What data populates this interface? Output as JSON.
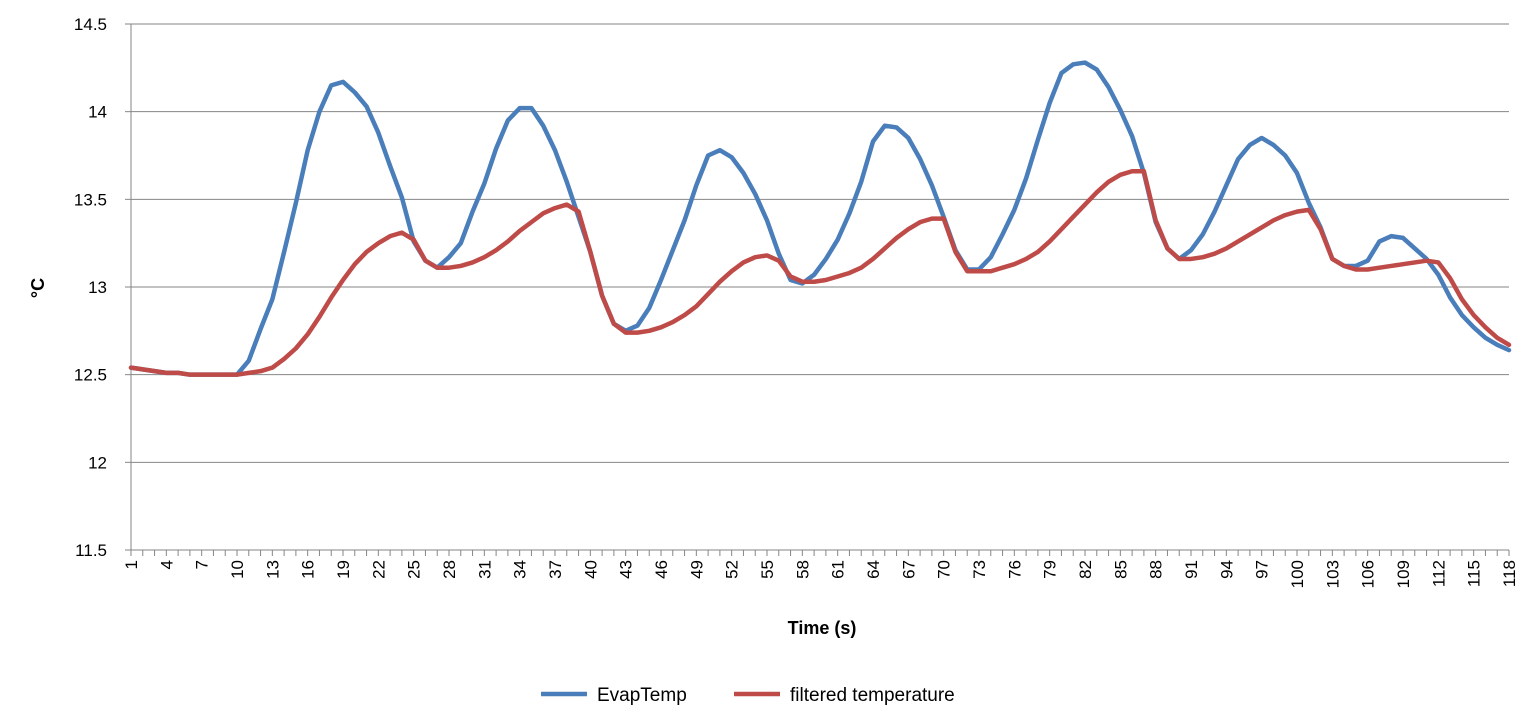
{
  "chart_data": {
    "type": "line",
    "title": "",
    "xlabel": "Time (s)",
    "ylabel": "°C",
    "ylim": [
      11.5,
      14.5
    ],
    "y_ticks": [
      "11.5",
      "12",
      "12.5",
      "13",
      "13.5",
      "14",
      "14.5"
    ],
    "x_range": [
      1,
      118
    ],
    "x_tick_labels": [
      "1",
      "4",
      "7",
      "10",
      "13",
      "16",
      "19",
      "22",
      "25",
      "28",
      "31",
      "34",
      "37",
      "40",
      "43",
      "46",
      "49",
      "52",
      "55",
      "58",
      "61",
      "64",
      "67",
      "70",
      "73",
      "76",
      "79",
      "82",
      "85",
      "88",
      "91",
      "94",
      "97",
      "100",
      "103",
      "106",
      "109",
      "112",
      "115",
      "118"
    ],
    "grid": "horizontal",
    "legend_position": "bottom",
    "series": [
      {
        "name": "EvapTemp",
        "color": "#4A7EBB",
        "values": [
          12.54,
          12.53,
          12.52,
          12.51,
          12.51,
          12.5,
          12.5,
          12.5,
          12.5,
          12.5,
          12.58,
          12.76,
          12.93,
          13.2,
          13.48,
          13.78,
          14.0,
          14.15,
          14.17,
          14.11,
          14.03,
          13.88,
          13.69,
          13.51,
          13.26,
          13.15,
          13.11,
          13.17,
          13.25,
          13.43,
          13.59,
          13.79,
          13.95,
          14.02,
          14.02,
          13.92,
          13.78,
          13.6,
          13.4,
          13.2,
          12.95,
          12.79,
          12.75,
          12.78,
          12.88,
          13.04,
          13.21,
          13.38,
          13.58,
          13.75,
          13.78,
          13.74,
          13.65,
          13.53,
          13.38,
          13.19,
          13.04,
          13.02,
          13.07,
          13.16,
          13.27,
          13.42,
          13.6,
          13.83,
          13.92,
          13.91,
          13.85,
          13.73,
          13.58,
          13.4,
          13.21,
          13.1,
          13.1,
          13.17,
          13.3,
          13.44,
          13.62,
          13.84,
          14.05,
          14.22,
          14.27,
          14.28,
          14.24,
          14.14,
          14.01,
          13.86,
          13.65,
          13.37,
          13.22,
          13.16,
          13.21,
          13.3,
          13.43,
          13.58,
          13.73,
          13.81,
          13.85,
          13.81,
          13.75,
          13.65,
          13.48,
          13.34,
          13.16,
          13.12,
          13.12,
          13.15,
          13.26,
          13.29,
          13.28,
          13.22,
          13.16,
          13.07,
          12.94,
          12.84,
          12.77,
          12.71,
          12.67,
          12.64
        ]
      },
      {
        "name": "filtered temperature",
        "color": "#BE4B48",
        "values": [
          12.54,
          12.53,
          12.52,
          12.51,
          12.51,
          12.5,
          12.5,
          12.5,
          12.5,
          12.5,
          12.51,
          12.52,
          12.54,
          12.59,
          12.65,
          12.73,
          12.83,
          12.94,
          13.04,
          13.13,
          13.2,
          13.25,
          13.29,
          13.31,
          13.27,
          13.15,
          13.11,
          13.11,
          13.12,
          13.14,
          13.17,
          13.21,
          13.26,
          13.32,
          13.37,
          13.42,
          13.45,
          13.47,
          13.43,
          13.2,
          12.95,
          12.79,
          12.74,
          12.74,
          12.75,
          12.77,
          12.8,
          12.84,
          12.89,
          12.96,
          13.03,
          13.09,
          13.14,
          13.17,
          13.18,
          13.15,
          13.06,
          13.03,
          13.03,
          13.04,
          13.06,
          13.08,
          13.11,
          13.16,
          13.22,
          13.28,
          13.33,
          13.37,
          13.39,
          13.39,
          13.2,
          13.09,
          13.09,
          13.09,
          13.11,
          13.13,
          13.16,
          13.2,
          13.26,
          13.33,
          13.4,
          13.47,
          13.54,
          13.6,
          13.64,
          13.66,
          13.66,
          13.38,
          13.22,
          13.16,
          13.16,
          13.17,
          13.19,
          13.22,
          13.26,
          13.3,
          13.34,
          13.38,
          13.41,
          13.43,
          13.44,
          13.33,
          13.16,
          13.12,
          13.1,
          13.1,
          13.11,
          13.12,
          13.13,
          13.14,
          13.15,
          13.14,
          13.05,
          12.93,
          12.84,
          12.77,
          12.71,
          12.67
        ]
      }
    ]
  }
}
